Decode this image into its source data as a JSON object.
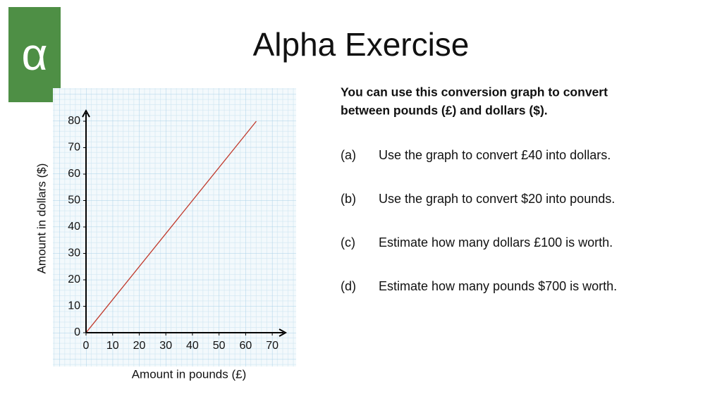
{
  "logo": "α",
  "title": "Alpha Exercise",
  "chart_data": {
    "type": "line",
    "x_label": "Amount in pounds (£)",
    "y_label": "Amount in dollars ($)",
    "x": [
      0,
      64
    ],
    "series": [
      {
        "color": "#c0392b",
        "values": [
          0,
          80
        ]
      }
    ],
    "xlim": [
      0,
      75
    ],
    "ylim": [
      0,
      84
    ],
    "xticks": [
      0,
      10,
      20,
      30,
      40,
      50,
      60,
      70
    ],
    "yticks": [
      0,
      10,
      20,
      30,
      40,
      50,
      60,
      70,
      80
    ]
  },
  "intro": [
    "You can use this conversion graph to convert",
    "between pounds (£) and dollars ($)."
  ],
  "questions": [
    {
      "label": "(a)",
      "text": "Use the graph to convert £40 into dollars."
    },
    {
      "label": "(b)",
      "text": "Use the graph to convert $20 into pounds."
    },
    {
      "label": "(c)",
      "text": "Estimate how many dollars £100 is worth."
    },
    {
      "label": "(d)",
      "text": "Estimate how many pounds $700 is worth."
    }
  ]
}
